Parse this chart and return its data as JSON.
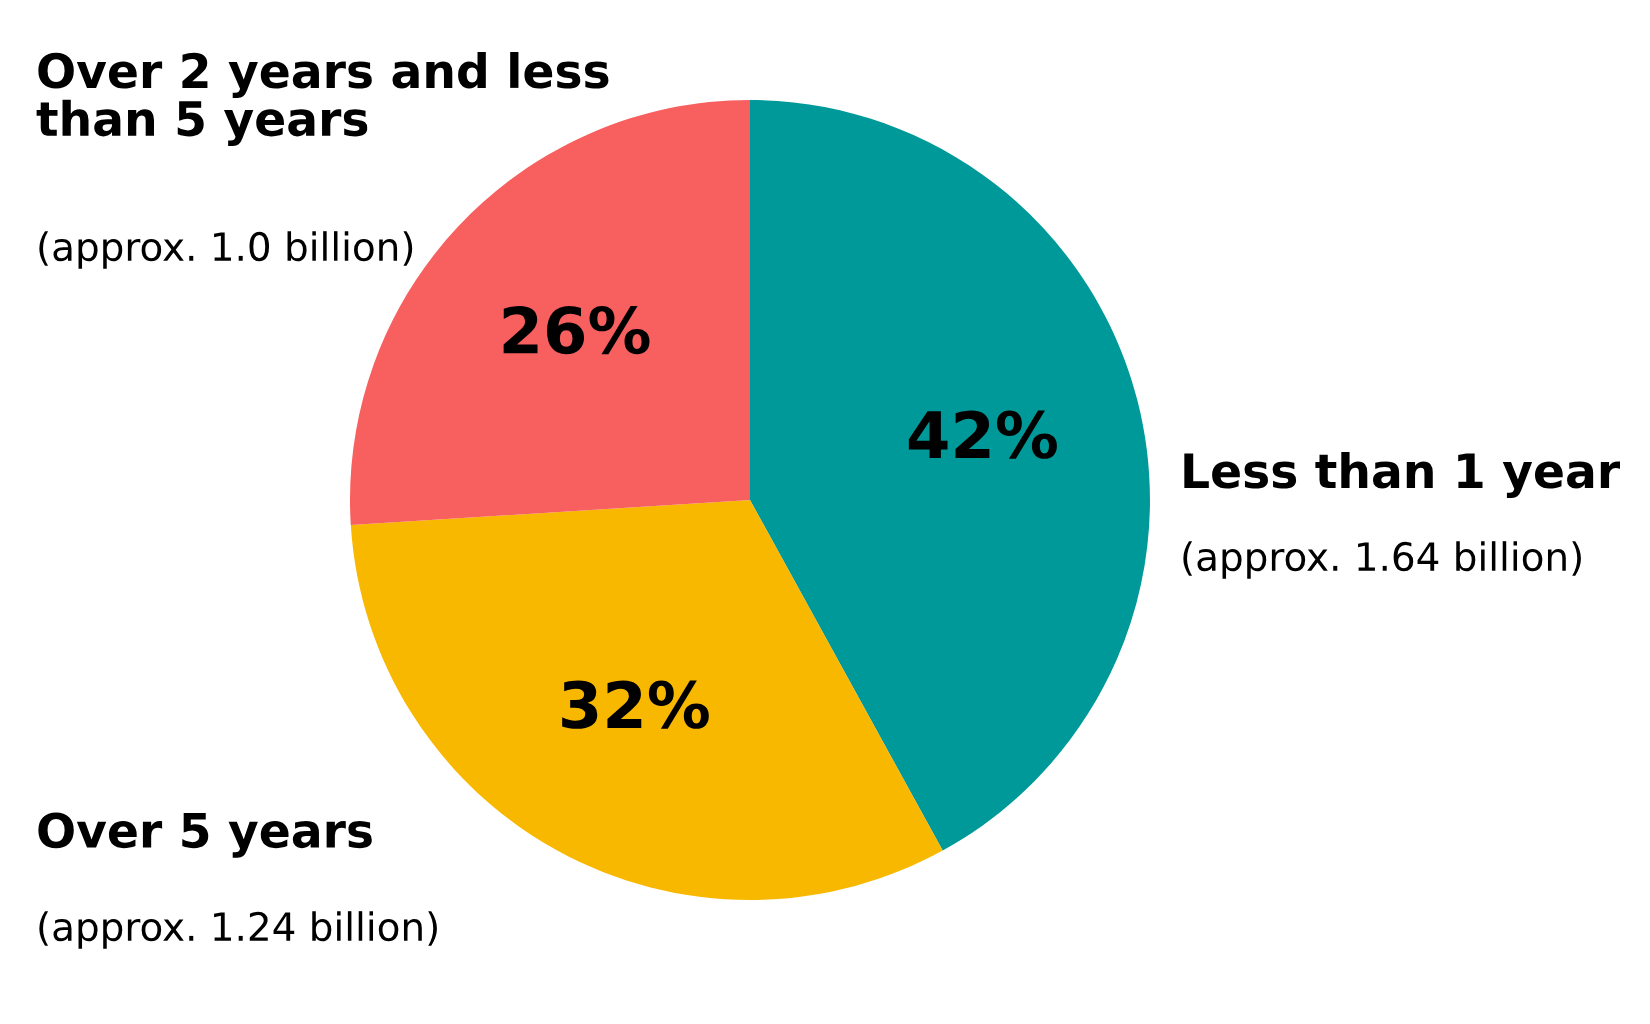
{
  "chart_data": {
    "type": "pie",
    "categories": [
      "Less than 1 year",
      "Over 5 years",
      "Over 2 years and less than 5 years"
    ],
    "values": [
      42,
      32,
      26
    ],
    "colors": [
      "#009999",
      "#f9b800",
      "#f85f5f"
    ],
    "value_labels": [
      "42%",
      "32%",
      "26%"
    ],
    "annotations": [
      "(approx. 1.64 billion)",
      "(approx. 1.24 billion)",
      "(approx. 1.0 billion)"
    ]
  }
}
